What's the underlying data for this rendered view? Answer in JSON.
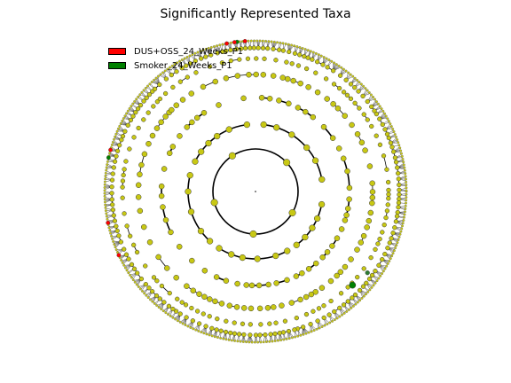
{
  "chart_data": {
    "type": "cladogram",
    "title": "Significantly Represented Taxa",
    "legend_placement": "top-left",
    "series": [
      {
        "name": "DUS+OSS_24_Weeks_P1",
        "color": "#ff0000"
      },
      {
        "name": "Smoker_24_Weeks_P1",
        "color": "#008000"
      }
    ],
    "node_color": "#c8c814",
    "ring_levels": 7
  }
}
